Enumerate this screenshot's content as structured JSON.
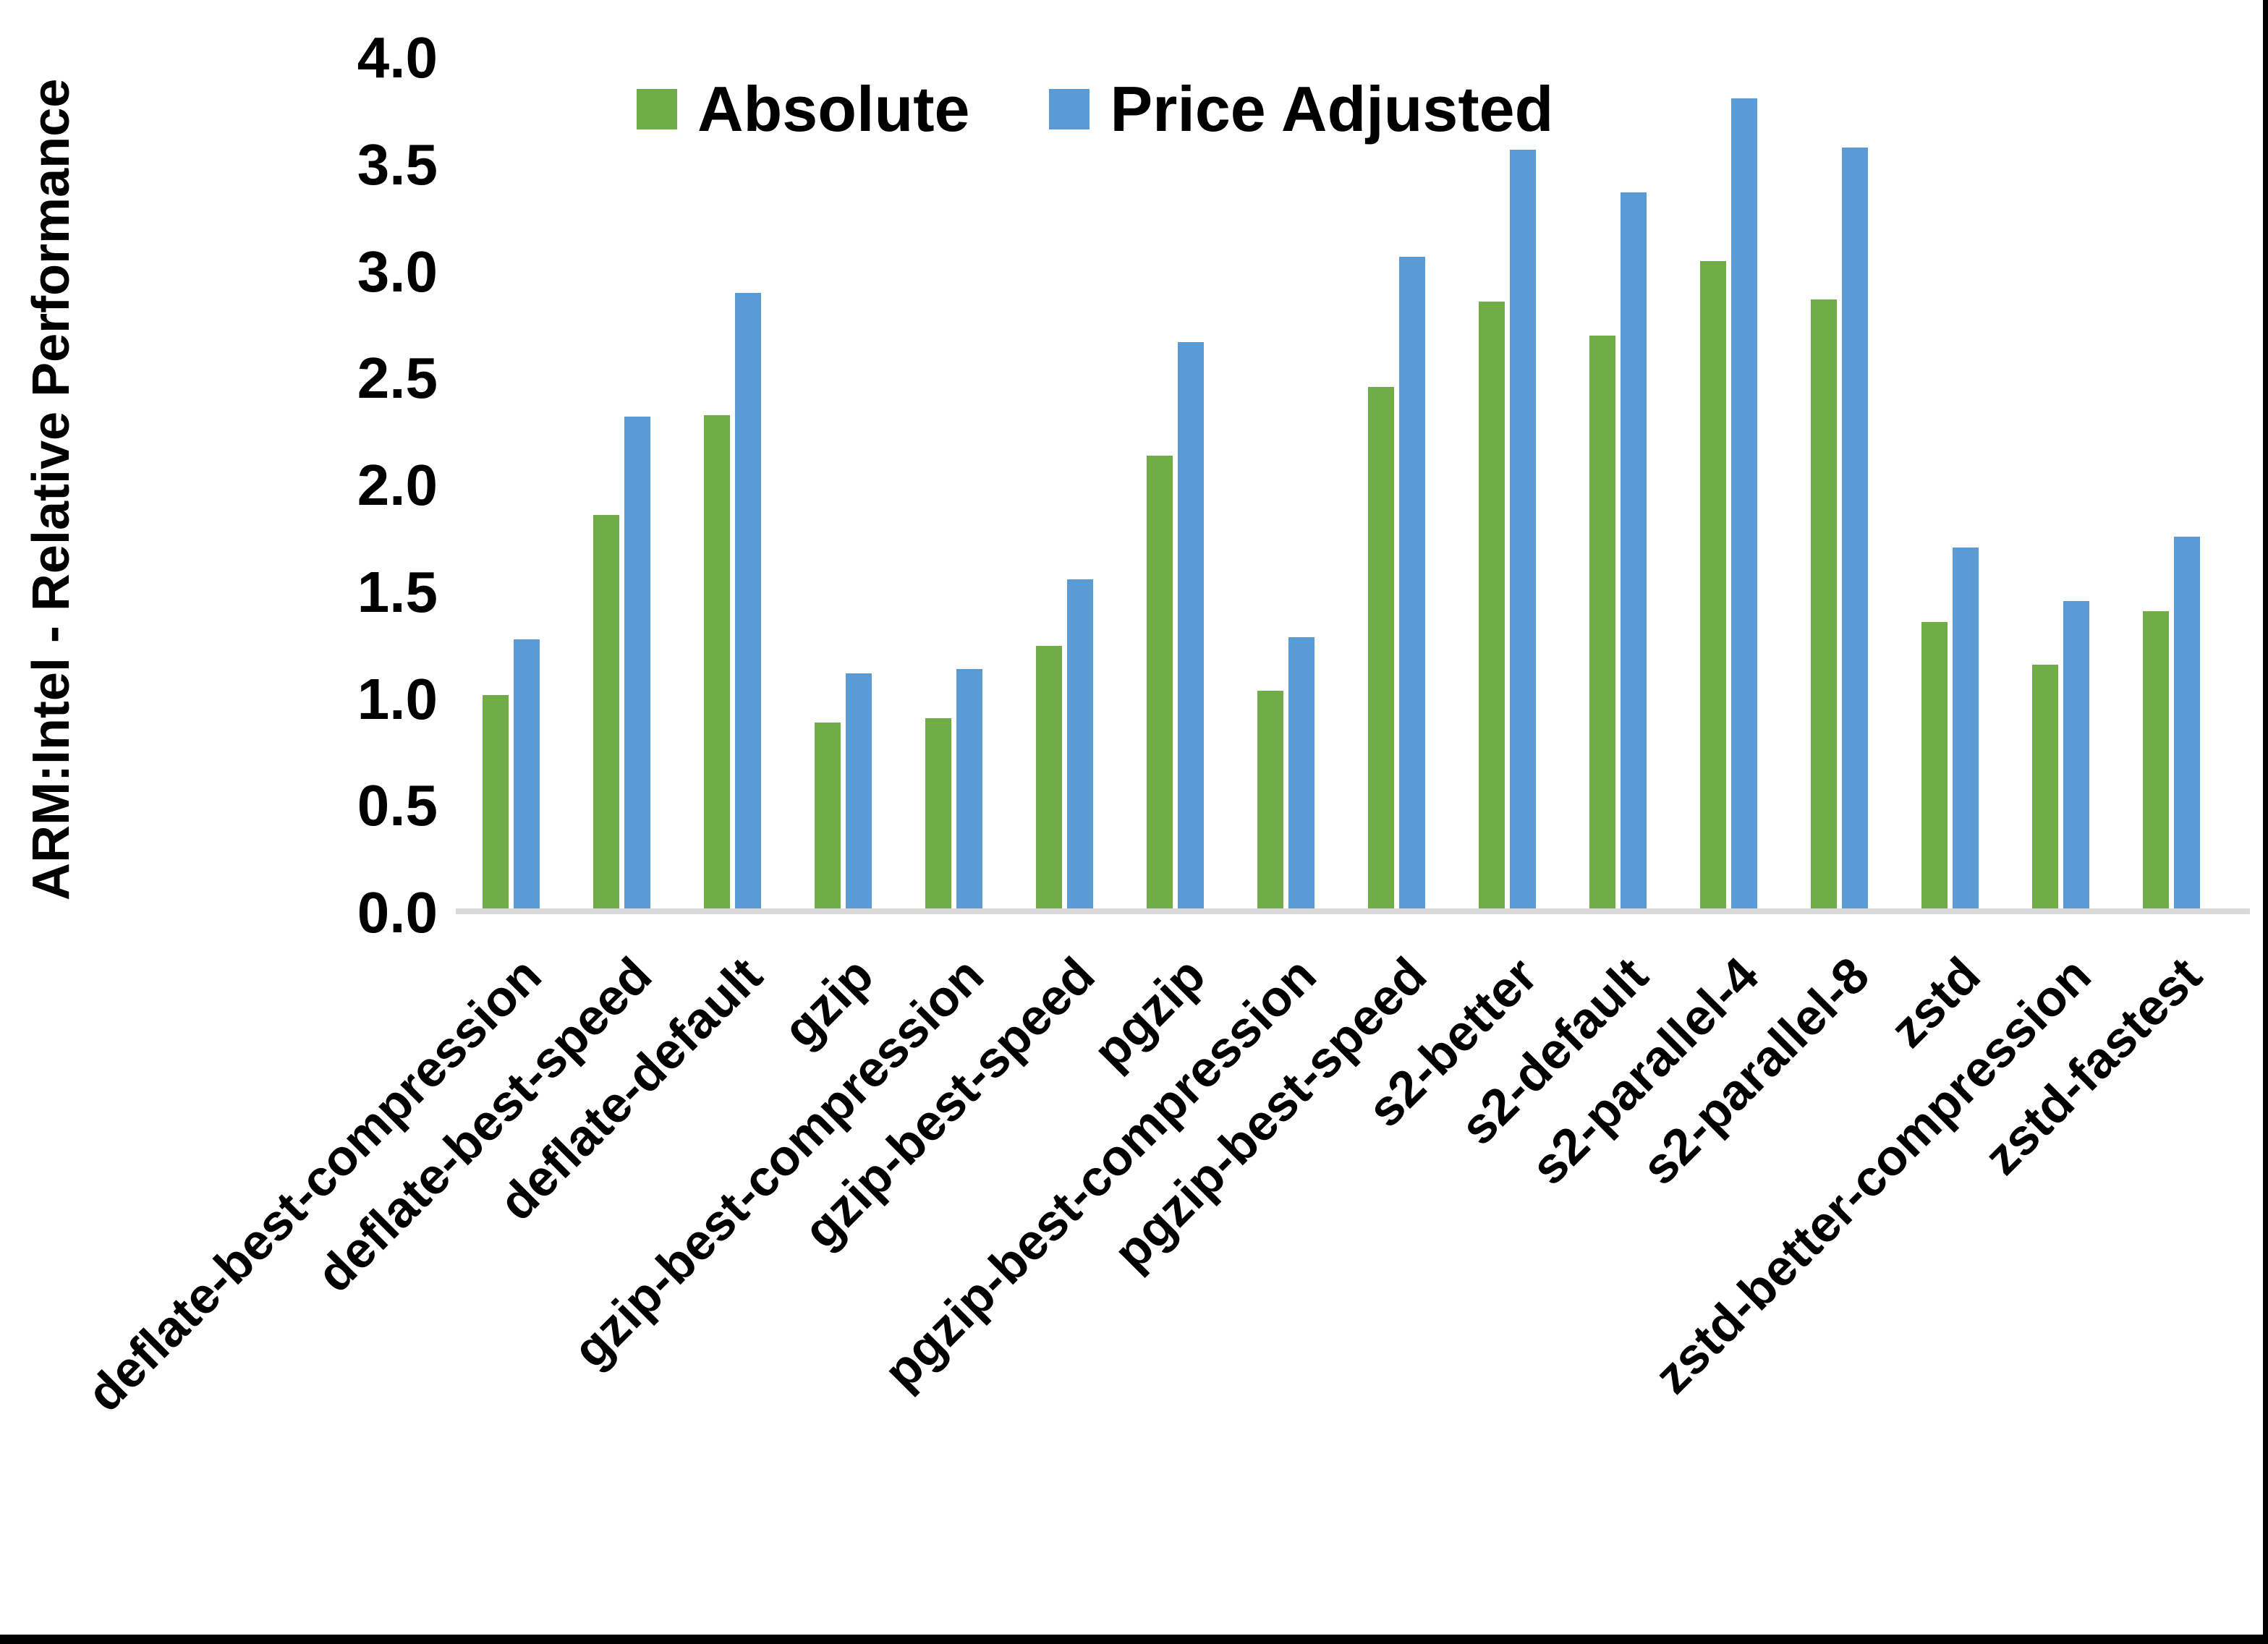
{
  "chart_data": {
    "type": "bar",
    "title": "",
    "xlabel": "",
    "ylabel": "ARM:Intel - Relative Performance",
    "ylim": [
      0.0,
      4.0
    ],
    "ytick_step": 0.5,
    "ytick_labels": [
      "0.0",
      "0.5",
      "1.0",
      "1.5",
      "2.0",
      "2.5",
      "3.0",
      "3.5",
      "4.0"
    ],
    "grid": false,
    "legend_position": "top-center",
    "background_color": "#FFFFFF",
    "axis_line_color": "#D9D9D9",
    "text_color": "#000000",
    "categories": [
      "deflate-best-compression",
      "deflate-best-speed",
      "deflate-default",
      "gzip",
      "gzip-best-compression",
      "gzip-best-speed",
      "pgzip",
      "pgzip-best-compression",
      "pgzip-best-speed",
      "s2-better",
      "s2-default",
      "s2-parallel-4",
      "s2-parallel-8",
      "zstd",
      "zstd-better-compression",
      "zstd-fastest"
    ],
    "series": [
      {
        "name": "Absolute",
        "color": "#70AD47",
        "values": [
          1.02,
          1.86,
          2.33,
          0.89,
          0.91,
          1.25,
          2.14,
          1.04,
          2.46,
          2.86,
          2.7,
          3.05,
          2.87,
          1.36,
          1.16,
          1.41
        ]
      },
      {
        "name": "Price Adjusted",
        "color": "#5B9BD5",
        "values": [
          1.28,
          2.32,
          2.9,
          1.12,
          1.14,
          1.56,
          2.67,
          1.29,
          3.07,
          3.57,
          3.37,
          3.81,
          3.58,
          1.71,
          1.46,
          1.76
        ]
      }
    ]
  }
}
